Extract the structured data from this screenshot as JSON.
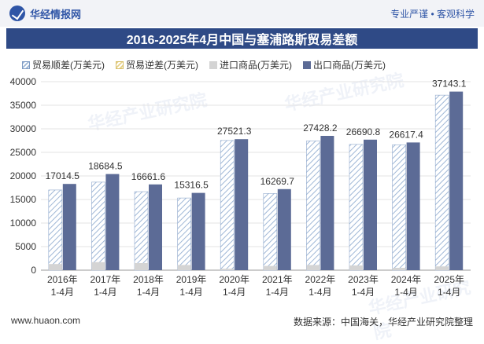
{
  "header": {
    "brand": "华经情报网",
    "slogan": "专业严谨 • 客观科学"
  },
  "watermarks": [
    "华经产业研究院",
    "华经产业研究院",
    "华经产业研究院"
  ],
  "footer": {
    "website": "www.huaon.com",
    "source": "数据来源：中国海关，华经产业研究院整理"
  },
  "colors": {
    "export": "#5c6b96",
    "import": "#d4d4d4",
    "surplus_stripe": "#9fb7d6",
    "deficit_stripe": "#e8d28a",
    "title_bg": "#2f4a86"
  },
  "chart_data": {
    "type": "bar",
    "title": "2016-2025年4月中国与塞浦路斯贸易差额",
    "categories": [
      "2016年\n1-4月",
      "2017年\n1-4月",
      "2018年\n1-4月",
      "2019年\n1-4月",
      "2020年\n1-4月",
      "2021年\n1-4月",
      "2022年\n1-4月",
      "2023年\n1-4月",
      "2024年\n1-4月",
      "2025年\n1-4月"
    ],
    "series": [
      {
        "name": "贸易顺差(万美元)",
        "values": [
          17014.5,
          18684.5,
          16661.6,
          15316.5,
          27521.3,
          16269.7,
          27428.2,
          26690.8,
          26617.4,
          37143.1
        ]
      },
      {
        "name": "贸易逆差(万美元)",
        "values": [
          0,
          0,
          0,
          0,
          0,
          0,
          0,
          0,
          0,
          0
        ]
      },
      {
        "name": "进口商品(万美元)",
        "values": [
          1300,
          1700,
          1500,
          1100,
          300,
          900,
          1100,
          1000,
          500,
          800
        ]
      },
      {
        "name": "出口商品(万美元)",
        "values": [
          18300,
          20400,
          18200,
          16400,
          27800,
          17200,
          28500,
          27700,
          27100,
          37900
        ]
      }
    ],
    "data_labels": [
      "17014.5",
      "18684.5",
      "16661.6",
      "15316.5",
      "27521.3",
      "16269.7",
      "27428.2",
      "26690.8",
      "26617.4",
      "37143.1"
    ],
    "xlabel": "",
    "ylabel": "",
    "ylim": [
      0,
      40000
    ],
    "yticks": [
      0,
      5000,
      10000,
      15000,
      20000,
      25000,
      30000,
      35000,
      40000
    ],
    "grid": true,
    "legend": "top"
  }
}
